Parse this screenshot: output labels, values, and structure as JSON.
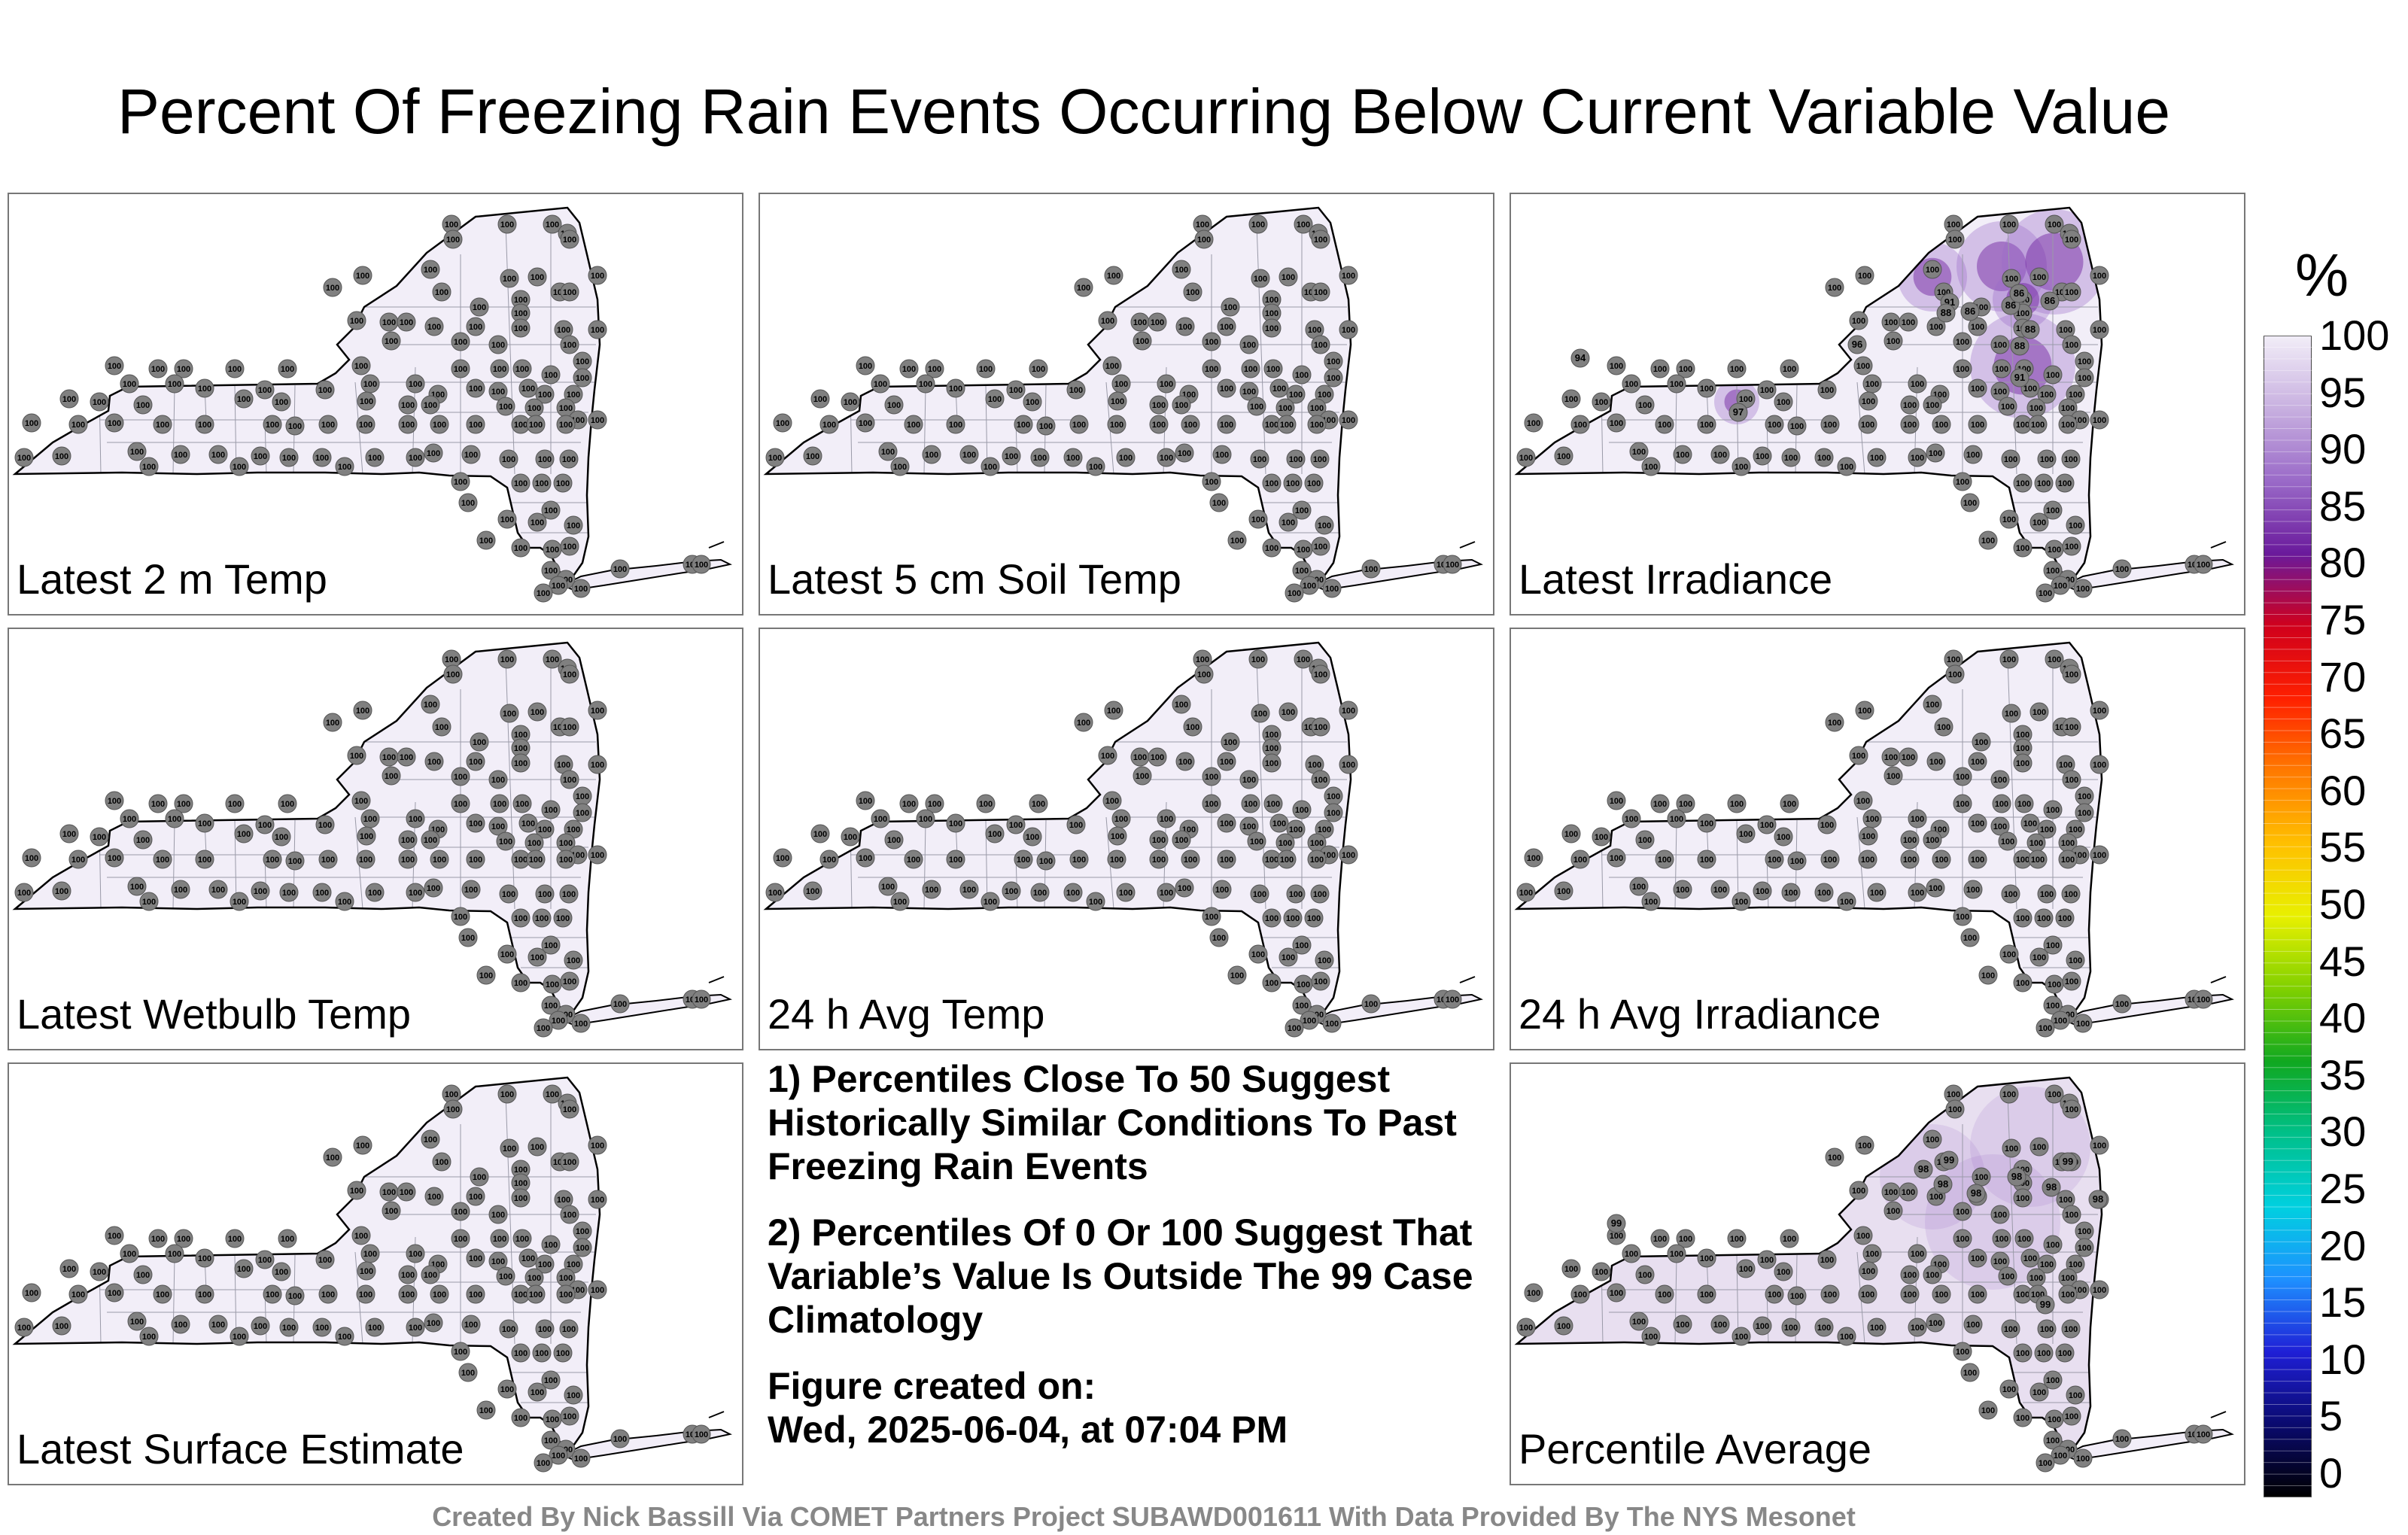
{
  "title": "Percent Of Freezing Rain Events Occurring Below Current Variable Value",
  "panels": [
    {
      "label": "Latest 2 m Temp",
      "highs": []
    },
    {
      "label": "Latest 5 cm Soil Temp",
      "highs": []
    },
    {
      "label": "Latest Irradiance",
      "highs": [
        {
          "v": "94"
        },
        {
          "v": "97"
        },
        {
          "v": "96"
        },
        {
          "v": "91"
        },
        {
          "v": "88"
        },
        {
          "v": "86"
        },
        {
          "v": "86"
        },
        {
          "v": "86"
        },
        {
          "v": "86"
        },
        {
          "v": "88"
        },
        {
          "v": "88"
        },
        {
          "v": "91"
        }
      ]
    },
    {
      "label": "Latest Wetbulb Temp",
      "highs": []
    },
    {
      "label": "24 h Avg Temp",
      "highs": []
    },
    {
      "label": "24 h Avg Irradiance",
      "highs": []
    },
    {
      "label": "Latest Surface Estimate",
      "highs": []
    },
    {
      "label": "Percentile Average",
      "highs": [
        {
          "v": "99"
        },
        {
          "v": "99"
        },
        {
          "v": "98"
        },
        {
          "v": "98"
        },
        {
          "v": "98"
        },
        {
          "v": "98"
        },
        {
          "v": "98"
        },
        {
          "v": "99"
        },
        {
          "v": "98"
        },
        {
          "v": "99"
        }
      ]
    }
  ],
  "station_value": "100",
  "notes": {
    "n1": "1) Percentiles Close To 50 Suggest Historically Similar Conditions To Past Freezing Rain Events",
    "n2": "2) Percentiles Of 0 Or 100 Suggest That Variable’s Value Is Outside The 99 Case Climatology",
    "created_label": "Figure created on:",
    "created_date": "Wed, 2025-06-04, at 07:04 PM"
  },
  "footer": "Created By Nick Bassill Via COMET Partners Project SUBAWD001611 With Data Provided By The NYS Mesonet",
  "colorbar": {
    "unit": "%",
    "ticks": [
      "100",
      "95",
      "90",
      "85",
      "80",
      "75",
      "70",
      "65",
      "60",
      "55",
      "50",
      "45",
      "40",
      "35",
      "30",
      "25",
      "20",
      "15",
      "10",
      "5",
      "0"
    ],
    "colors": [
      "#000000",
      "#0a0a6e",
      "#1f1fd6",
      "#1e90ff",
      "#00d0e0",
      "#00c08a",
      "#10a820",
      "#80d000",
      "#e8f000",
      "#ffc000",
      "#ff7a00",
      "#ff2000",
      "#d0001c",
      "#6a1a9c",
      "#9a6ac8",
      "#c8b0e0",
      "#f2eef8"
    ]
  }
}
